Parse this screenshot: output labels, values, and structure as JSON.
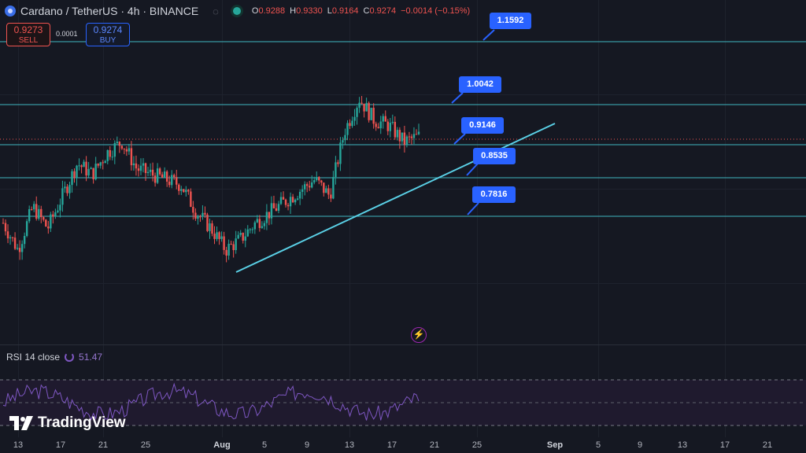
{
  "header": {
    "title": "Cardano / TetherUS · 4h · BINANCE",
    "eye_icon": "eye-off-icon",
    "ohlc": [
      {
        "key": "O",
        "value": "0.9288"
      },
      {
        "key": "H",
        "value": "0.9330"
      },
      {
        "key": "L",
        "value": "0.9164"
      },
      {
        "key": "C",
        "value": "0.9274"
      }
    ],
    "change": "−0.0014 (−0.15%)"
  },
  "trade": {
    "sell_price": "0.9273",
    "sell_label": "SELL",
    "spread": "0.0001",
    "buy_price": "0.9274",
    "buy_label": "BUY"
  },
  "levels": [
    "1.1592",
    "1.0042",
    "0.9146",
    "0.8535",
    "0.7816"
  ],
  "rsi": {
    "label": "RSI 14 close",
    "value": "51.47"
  },
  "x_axis": [
    "13",
    "17",
    "21",
    "25",
    "Aug",
    "5",
    "9",
    "13",
    "17",
    "21",
    "25",
    "Sep",
    "5",
    "9",
    "13",
    "17",
    "21"
  ],
  "brand": "TradingView",
  "colors": {
    "background": "#151822",
    "level_line": "#3fb6c0",
    "trendline": "#5ad0e6",
    "callout": "#2962ff",
    "up": "#26a69a",
    "down": "#ef5350",
    "rsi": "#7e57c2"
  },
  "chart_data": {
    "type": "candlestick",
    "timeframe": "4h",
    "symbol": "ADA/USDT",
    "approx_close_path": [
      0.77,
      0.72,
      0.8,
      0.76,
      0.82,
      0.88,
      0.86,
      0.9,
      0.92,
      0.87,
      0.86,
      0.85,
      0.84,
      0.79,
      0.76,
      0.72,
      0.74,
      0.77,
      0.79,
      0.81,
      0.83,
      0.85,
      0.82,
      0.94,
      1.0,
      0.96,
      0.95,
      0.92,
      0.93
    ],
    "horizontal_levels": [
      1.1592,
      1.0042,
      0.9146,
      0.8535,
      0.7816
    ],
    "rsi_last": 51.47
  }
}
